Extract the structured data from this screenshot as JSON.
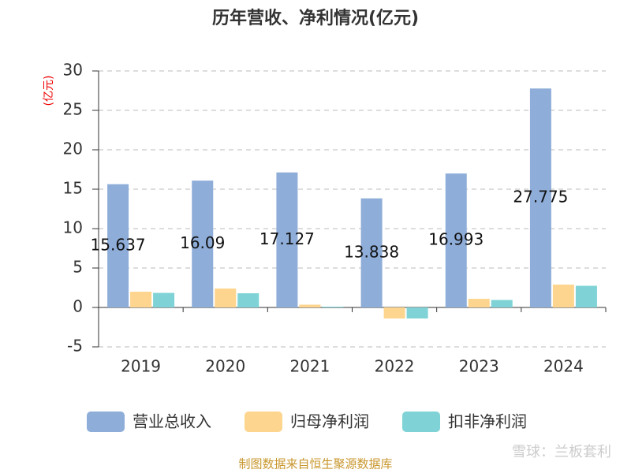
{
  "chart_data": {
    "type": "bar",
    "title": "历年营收、净利情况(亿元)",
    "y_label": "(亿元)",
    "categories": [
      "2019",
      "2020",
      "2021",
      "2022",
      "2023",
      "2024"
    ],
    "series": [
      {
        "name": "营业总收入",
        "color": "#8eadd9",
        "values": [
          15.637,
          16.09,
          17.127,
          13.838,
          16.993,
          27.775
        ],
        "show_labels": true
      },
      {
        "name": "归母净利润",
        "color": "#fdd58e",
        "values": [
          2.0,
          2.4,
          0.35,
          -1.4,
          1.1,
          2.9
        ]
      },
      {
        "name": "扣非净利润",
        "color": "#7fd3d6",
        "values": [
          1.85,
          1.8,
          0.1,
          -1.4,
          0.95,
          2.75
        ]
      }
    ],
    "ylim": [
      -5,
      30
    ],
    "yticks": [
      -5,
      0,
      5,
      10,
      15,
      20,
      25,
      30
    ],
    "grid": true,
    "legend": "bottom",
    "footer": "制图数据来自恒生聚源数据库",
    "watermark": "雪球：兰板套利"
  }
}
